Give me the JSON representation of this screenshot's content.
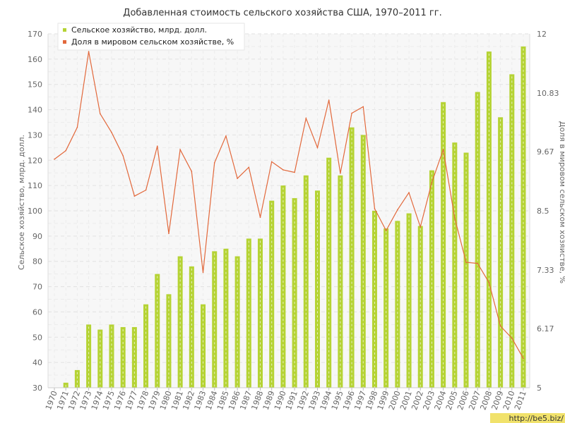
{
  "chart_data": {
    "type": "bar+line",
    "title": "Добавленная стоимость сельского хозяйства США, 1970–2011 гг.",
    "ylabel_left": "Сельское хозяйство, млрд. долл.",
    "ylabel_right": "Доля в мировом сельском хозяйстве, %",
    "ylim_left": [
      30,
      170
    ],
    "ylim_right": [
      5,
      12
    ],
    "yticks_left": [
      "30",
      "40",
      "50",
      "60",
      "70",
      "80",
      "90",
      "100",
      "110",
      "120",
      "130",
      "140",
      "150",
      "160",
      "170"
    ],
    "yticks_right": [
      "5",
      "6.17",
      "7.33",
      "8.5",
      "9.67",
      "10.83",
      "12"
    ],
    "legend_position": "top-left",
    "grid": true,
    "categories": [
      "1970",
      "1971",
      "1972",
      "1973",
      "1974",
      "1975",
      "1976",
      "1977",
      "1978",
      "1979",
      "1980",
      "1981",
      "1982",
      "1983",
      "1984",
      "1985",
      "1986",
      "1987",
      "1988",
      "1989",
      "1990",
      "1991",
      "1992",
      "1993",
      "1994",
      "1995",
      "1996",
      "1997",
      "1998",
      "1999",
      "2000",
      "2001",
      "2002",
      "2003",
      "2004",
      "2005",
      "2006",
      "2007",
      "2008",
      "2009",
      "2010",
      "2011"
    ],
    "series": [
      {
        "name": "Сельское хозяйство, млрд. долл.",
        "type": "bar",
        "color": "#b5d334",
        "axis": "left",
        "values": [
          30,
          32,
          37,
          55,
          53,
          55,
          54,
          54,
          63,
          75,
          67,
          82,
          78,
          63,
          84,
          85,
          82,
          89,
          89,
          104,
          110,
          105,
          114,
          108,
          121,
          114,
          133,
          130,
          100,
          93,
          96,
          99,
          94,
          116,
          143,
          127,
          123,
          147,
          163,
          137,
          154,
          165
        ]
      },
      {
        "name": "Доля в мировом сельском хозяйстве, %",
        "type": "line",
        "color": "#e2683b",
        "axis": "right",
        "values": [
          9.52,
          9.69,
          10.15,
          11.65,
          10.42,
          10.05,
          9.59,
          8.79,
          8.91,
          9.78,
          8.05,
          9.71,
          9.28,
          7.28,
          9.45,
          9.98,
          9.14,
          9.36,
          8.37,
          9.47,
          9.31,
          9.26,
          10.33,
          9.75,
          10.69,
          9.24,
          10.43,
          10.56,
          8.54,
          8.11,
          8.52,
          8.86,
          8.18,
          9.06,
          9.71,
          8.36,
          7.48,
          7.46,
          7.08,
          6.22,
          5.98,
          5.58
        ]
      }
    ]
  },
  "watermark": "http://be5.biz/"
}
